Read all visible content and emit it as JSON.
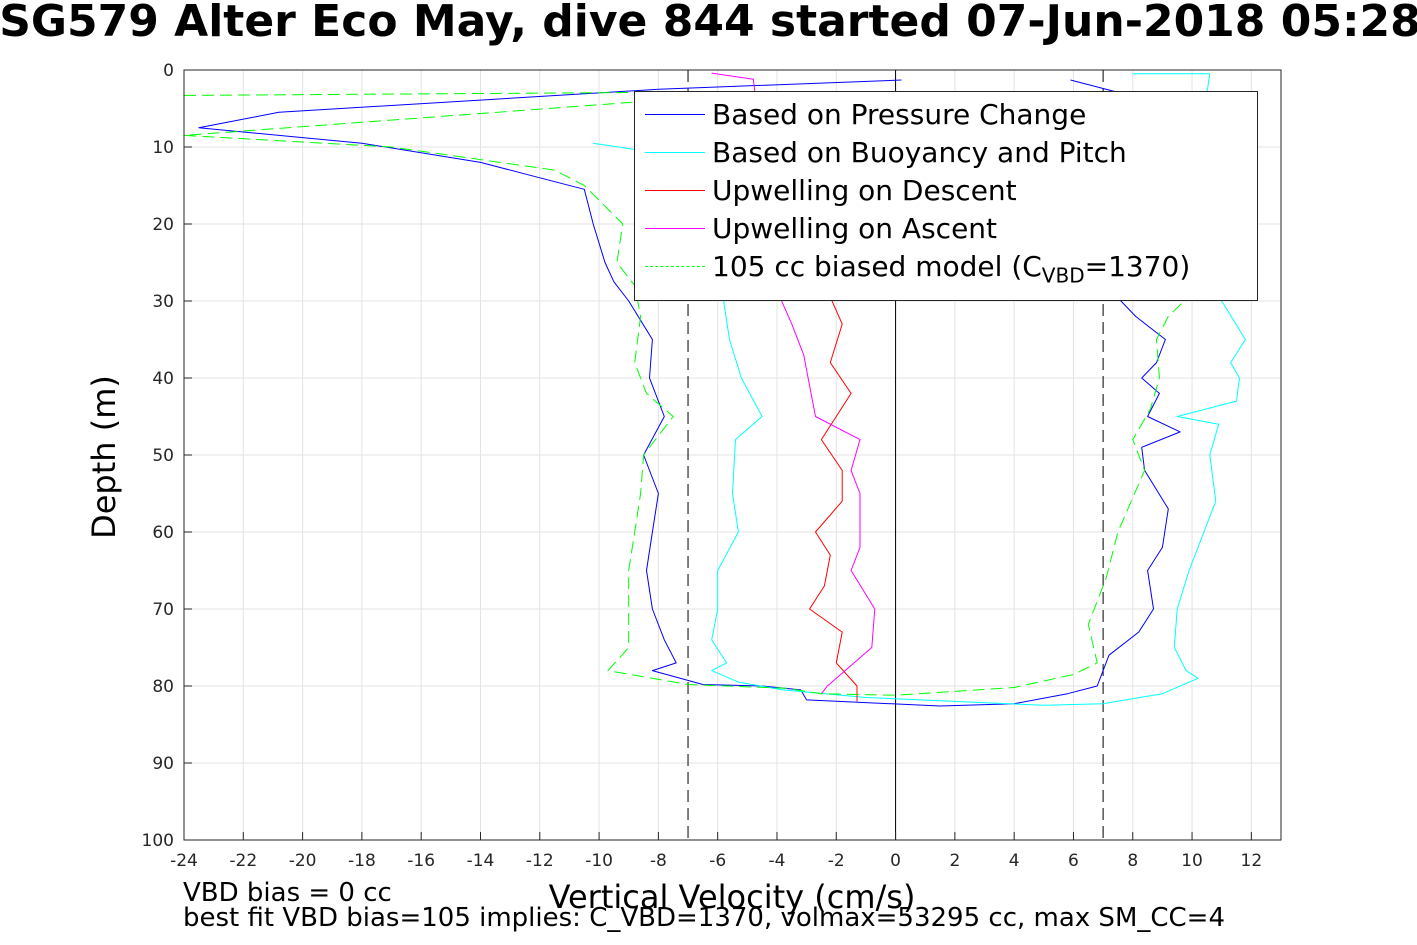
{
  "chart_data": {
    "type": "line",
    "title": "SG579 Alter Eco May, dive 844 started 07-Jun-2018 05:28",
    "xlabel": "Vertical Velocity (cm/s)",
    "ylabel": "Depth (m)",
    "xlim": [
      -24,
      13
    ],
    "ylim": [
      0,
      100
    ],
    "y_reversed": true,
    "grid": true,
    "legend_position": "top-right",
    "x_ticks": [
      "-24",
      "-22",
      "-20",
      "-18",
      "-16",
      "-14",
      "-12",
      "-10",
      "-8",
      "-6",
      "-4",
      "-2",
      "0",
      "2",
      "4",
      "6",
      "8",
      "10",
      "12"
    ],
    "y_ticks": [
      "0",
      "10",
      "20",
      "30",
      "40",
      "50",
      "60",
      "70",
      "80",
      "90",
      "100"
    ],
    "reference_lines": [
      {
        "x": -7,
        "style": "dashed",
        "color": "#000000"
      },
      {
        "x": 0,
        "style": "solid",
        "color": "#000000"
      },
      {
        "x": 7,
        "style": "dashed",
        "color": "#000000"
      }
    ],
    "legend": [
      {
        "label": "Based on Pressure Change",
        "color": "#0000ff",
        "dash": "solid"
      },
      {
        "label": "Based on Buoyancy and Pitch",
        "color": "#00ffff",
        "dash": "solid"
      },
      {
        "label": "Upwelling on Descent",
        "color": "#ff0000",
        "dash": "solid"
      },
      {
        "label": "Upwelling on Ascent",
        "color": "#ff00ff",
        "dash": "solid"
      },
      {
        "label_main": "105 cc biased model (C",
        "label_sub": "VBD",
        "label_end": "=1370)",
        "color": "#00ff00",
        "dash": "dashed"
      }
    ],
    "series": [
      {
        "name": "Based on Pressure Change",
        "color": "#0000ff",
        "dash": "solid",
        "points": [
          [
            0.2,
            1.3
          ],
          [
            -8,
            2.5
          ],
          [
            -20.8,
            5.5
          ],
          [
            -23.5,
            7.5
          ],
          [
            -18,
            9.5
          ],
          [
            -14,
            12
          ],
          [
            -12,
            14
          ],
          [
            -10.5,
            15.5
          ],
          [
            -10.2,
            20
          ],
          [
            -9.8,
            25
          ],
          [
            -9.5,
            27.5
          ],
          [
            -9,
            30
          ],
          [
            -8.2,
            35
          ],
          [
            -8.3,
            40
          ],
          [
            -7.8,
            45
          ],
          [
            -8.5,
            50
          ],
          [
            -8,
            55
          ],
          [
            -8.2,
            60
          ],
          [
            -8.4,
            65
          ],
          [
            -8.2,
            70
          ],
          [
            -7.8,
            74
          ],
          [
            -7.4,
            77
          ],
          [
            -8.2,
            78
          ],
          [
            -6.5,
            79.8
          ],
          [
            -4.5,
            80
          ],
          [
            -3.2,
            80.5
          ],
          [
            -3,
            81.8
          ],
          [
            1.5,
            82.6
          ],
          [
            4,
            82.3
          ],
          [
            5.8,
            81
          ],
          [
            6.8,
            80
          ],
          [
            7.2,
            76
          ],
          [
            8.2,
            73
          ],
          [
            8.7,
            70
          ],
          [
            8.5,
            65
          ],
          [
            9,
            62
          ],
          [
            9.2,
            57
          ],
          [
            8.4,
            52
          ],
          [
            8.3,
            49
          ],
          [
            9.6,
            47
          ],
          [
            8.5,
            45
          ],
          [
            8.9,
            42
          ],
          [
            8.3,
            40
          ],
          [
            8.8,
            38
          ],
          [
            9.1,
            35
          ],
          [
            8.1,
            32
          ],
          [
            7.6,
            30
          ],
          [
            7.3,
            28
          ],
          [
            7.2,
            10
          ],
          [
            7.6,
            3
          ],
          [
            5.9,
            1.3
          ]
        ]
      },
      {
        "name": "Based on Buoyancy and Pitch",
        "color": "#00ffff",
        "dash": "solid",
        "points": [
          [
            -10.2,
            9.5
          ],
          [
            -8.5,
            10.5
          ],
          [
            -7.5,
            14
          ],
          [
            -7.3,
            20
          ],
          [
            -6.8,
            27
          ],
          [
            -5.8,
            30
          ],
          [
            -5.6,
            35
          ],
          [
            -5.2,
            40
          ],
          [
            -4.5,
            45
          ],
          [
            -5.4,
            48
          ],
          [
            -5.5,
            55
          ],
          [
            -5.3,
            60
          ],
          [
            -6,
            65
          ],
          [
            -6,
            70
          ],
          [
            -6.2,
            74
          ],
          [
            -5.7,
            77
          ],
          [
            -6.2,
            78
          ],
          [
            -5.3,
            79.5
          ],
          [
            -3.8,
            80.5
          ],
          [
            -1,
            81.5
          ],
          [
            5,
            82.5
          ],
          [
            7,
            82.3
          ],
          [
            9,
            81
          ],
          [
            10.2,
            79
          ],
          [
            9.8,
            78
          ],
          [
            9.4,
            75
          ],
          [
            9.5,
            70
          ],
          [
            9.9,
            65
          ],
          [
            10.4,
            60
          ],
          [
            10.8,
            56
          ],
          [
            10.6,
            50
          ],
          [
            10.9,
            46
          ],
          [
            9.5,
            45
          ],
          [
            11.5,
            43
          ],
          [
            11.6,
            40
          ],
          [
            11.3,
            38
          ],
          [
            11.8,
            35
          ],
          [
            11,
            30
          ],
          [
            10.8,
            26
          ],
          [
            11.6,
            10
          ],
          [
            10.5,
            3
          ],
          [
            10.6,
            0.5
          ],
          [
            8,
            0.5
          ]
        ]
      },
      {
        "name": "Upwelling on Descent",
        "color": "#ff0000",
        "dash": "solid",
        "points": [
          [
            -2.2,
            29.5
          ],
          [
            -1.8,
            33
          ],
          [
            -2.2,
            38
          ],
          [
            -1.5,
            42
          ],
          [
            -2.5,
            48
          ],
          [
            -1.8,
            52
          ],
          [
            -1.8,
            56
          ],
          [
            -2.7,
            60
          ],
          [
            -2.2,
            63
          ],
          [
            -2.4,
            67
          ],
          [
            -2.9,
            70
          ],
          [
            -1.8,
            73
          ],
          [
            -2,
            77
          ],
          [
            -1.3,
            80
          ],
          [
            -1.3,
            82
          ]
        ]
      },
      {
        "name": "Upwelling on Ascent",
        "color": "#ff00ff",
        "dash": "solid",
        "points": [
          [
            -6.2,
            0.4
          ],
          [
            -4.8,
            1.2
          ],
          [
            -3.9,
            29.5
          ],
          [
            -3.5,
            33
          ],
          [
            -3.1,
            37
          ],
          [
            -2.9,
            41
          ],
          [
            -2.7,
            45
          ],
          [
            -1.2,
            48
          ],
          [
            -1.5,
            52
          ],
          [
            -1.2,
            55
          ],
          [
            -1.2,
            60
          ],
          [
            -1.2,
            62
          ],
          [
            -1.5,
            65
          ],
          [
            -0.7,
            70
          ],
          [
            -0.8,
            75
          ],
          [
            -2.3,
            80
          ],
          [
            -2.5,
            81
          ]
        ]
      },
      {
        "name": "105 cc biased model (CVBD=1370)",
        "color": "#00ff00",
        "dash": "dashed",
        "points": [
          [
            -24,
            3.3
          ],
          [
            -4,
            2.8
          ],
          [
            -24,
            8.5
          ],
          [
            -17,
            10
          ],
          [
            -11.5,
            13
          ],
          [
            -10.5,
            15
          ],
          [
            -9.2,
            20
          ],
          [
            -9.4,
            25
          ],
          [
            -8.8,
            28
          ],
          [
            -8.6,
            32
          ],
          [
            -8.8,
            38
          ],
          [
            -8.4,
            42
          ],
          [
            -7.5,
            45
          ],
          [
            -8.5,
            50
          ],
          [
            -8.6,
            55
          ],
          [
            -8.8,
            60
          ],
          [
            -9,
            65
          ],
          [
            -9,
            70
          ],
          [
            -9,
            75
          ],
          [
            -9.7,
            78
          ],
          [
            -7,
            79.8
          ],
          [
            -3.7,
            80.3
          ],
          [
            -2.5,
            81
          ],
          [
            0,
            81.2
          ],
          [
            4,
            80.2
          ],
          [
            6,
            78.5
          ],
          [
            6.8,
            77
          ],
          [
            6.5,
            72
          ],
          [
            7.1,
            66
          ],
          [
            7.5,
            60
          ],
          [
            8.4,
            52
          ],
          [
            8,
            48
          ],
          [
            8.6,
            44
          ],
          [
            8.9,
            40
          ],
          [
            8.8,
            35
          ],
          [
            9.2,
            32
          ],
          [
            10,
            29
          ],
          [
            10.8,
            10
          ],
          [
            9.8,
            3
          ]
        ]
      }
    ]
  },
  "notes": {
    "vbd_bias": "VBD bias = 0 cc",
    "best_fit": "best fit VBD bias=105 implies: C_VBD=1370, volmax=53295 cc, max SM_CC=4"
  }
}
